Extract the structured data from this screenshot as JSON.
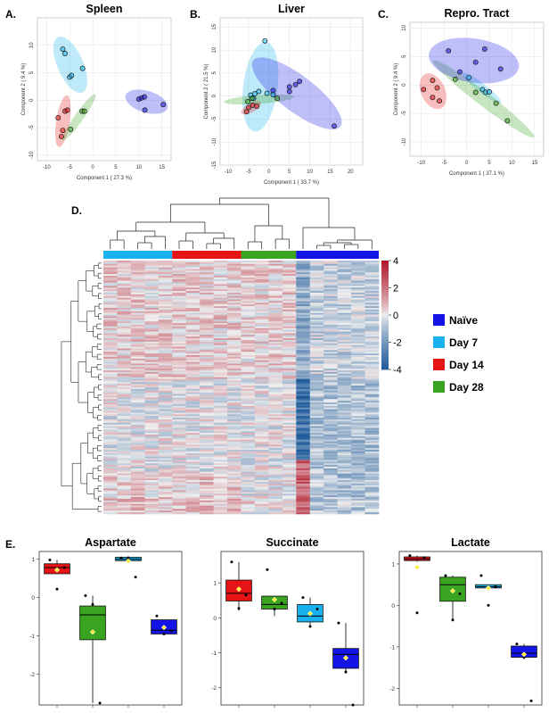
{
  "panel_letters": [
    "A.",
    "B.",
    "C.",
    "D.",
    "E."
  ],
  "colors": {
    "naive": "#1414e6",
    "day7": "#1ab2ee",
    "day14": "#e61414",
    "day28": "#3aa31f",
    "heat_low": "#1f5b9b",
    "heat_mid": "#efefef",
    "heat_high": "#b2182b"
  },
  "legend": [
    {
      "label": "Naïve",
      "color": "#1414e6"
    },
    {
      "label": "Day 7",
      "color": "#1ab2ee"
    },
    {
      "label": "Day 14",
      "color": "#e61414"
    },
    {
      "label": "Day 28",
      "color": "#3aa31f"
    }
  ],
  "chart_data": [
    {
      "type": "scatter",
      "title": "Spleen",
      "xlabel": "Component 1 ( 27.3 %)",
      "ylabel": "Component 2 ( 9.4 %)",
      "xlim": [
        -12,
        17
      ],
      "ylim": [
        -11,
        15
      ],
      "xticks": [
        -10,
        -5,
        0,
        5,
        10,
        15
      ],
      "yticks": [
        -10,
        -5,
        0,
        5,
        10
      ],
      "series": [
        {
          "name": "Day 7",
          "points": [
            [
              -6.5,
              9.3
            ],
            [
              -6.0,
              8.5
            ],
            [
              -5.0,
              4.2
            ],
            [
              -4.6,
              4.5
            ],
            [
              -2.2,
              5.8
            ]
          ]
        },
        {
          "name": "Day 14",
          "points": [
            [
              -7.5,
              -3.2
            ],
            [
              -6.5,
              -5.5
            ],
            [
              -6.0,
              -2.0
            ],
            [
              -5.5,
              -1.8
            ],
            [
              -6.8,
              -6.6
            ]
          ]
        },
        {
          "name": "Day 28",
          "points": [
            [
              -4.8,
              -5.3
            ],
            [
              -2.3,
              -2.0
            ],
            [
              -1.8,
              -2.0
            ]
          ]
        },
        {
          "name": "Naïve",
          "points": [
            [
              10.0,
              0.2
            ],
            [
              10.6,
              0.4
            ],
            [
              11.2,
              0.6
            ],
            [
              11.3,
              -1.8
            ],
            [
              15.3,
              -0.8
            ]
          ]
        }
      ]
    },
    {
      "type": "scatter",
      "title": "Liver",
      "xlabel": "Component 1 ( 33.7 %)",
      "ylabel": "Component 2 ( 21.5 %)",
      "xlim": [
        -12,
        23
      ],
      "ylim": [
        -15,
        17
      ],
      "xticks": [
        -10,
        -5,
        0,
        5,
        10,
        15,
        20
      ],
      "yticks": [
        -15,
        -10,
        -5,
        0,
        5,
        10,
        15
      ],
      "series": [
        {
          "name": "Day 7",
          "points": [
            [
              -1.0,
              12.0
            ],
            [
              -4.5,
              0.2
            ],
            [
              -3.5,
              0.5
            ],
            [
              -2.5,
              1.0
            ],
            [
              -0.5,
              0.6
            ],
            [
              1.0,
              0.3
            ],
            [
              -3.8,
              -0.5
            ]
          ]
        },
        {
          "name": "Day 14",
          "points": [
            [
              -5.5,
              -3.4
            ],
            [
              -5.0,
              -2.5
            ],
            [
              -4.0,
              -2.0
            ],
            [
              -3.0,
              -2.2
            ]
          ]
        },
        {
          "name": "Day 28",
          "points": [
            [
              -5.2,
              -1.2
            ],
            [
              -4.2,
              -0.5
            ],
            [
              2.0,
              -0.5
            ]
          ]
        },
        {
          "name": "Naïve",
          "points": [
            [
              1.0,
              1.2
            ],
            [
              5.0,
              1.0
            ],
            [
              5.0,
              2.0
            ],
            [
              6.5,
              2.5
            ],
            [
              7.5,
              3.2
            ],
            [
              16.0,
              -6.5
            ]
          ]
        }
      ]
    },
    {
      "type": "scatter",
      "title": "Repro. Tract",
      "xlabel": "Component 1 ( 37.1 %)",
      "ylabel": "Component 2 ( 9.4 %)",
      "xlim": [
        -12.5,
        17
      ],
      "ylim": [
        -12.5,
        11
      ],
      "xticks": [
        -10,
        -5,
        0,
        5,
        10,
        15
      ],
      "yticks": [
        -10,
        -5,
        0,
        5,
        10
      ],
      "series": [
        {
          "name": "Day 14",
          "points": [
            [
              -7.5,
              0.8
            ],
            [
              -9.5,
              -0.8
            ],
            [
              -6.5,
              -0.5
            ],
            [
              -7.5,
              -2.2
            ],
            [
              -6.0,
              -2.8
            ]
          ]
        },
        {
          "name": "Day 7",
          "points": [
            [
              0.5,
              1.3
            ],
            [
              3.5,
              -0.8
            ],
            [
              4.2,
              -1.3
            ],
            [
              5.0,
              -1.2
            ]
          ]
        },
        {
          "name": "Day 28",
          "points": [
            [
              -2.5,
              1.0
            ],
            [
              2.0,
              -1.3
            ],
            [
              6.5,
              -3.2
            ],
            [
              9.0,
              -6.3
            ]
          ]
        },
        {
          "name": "Naïve",
          "points": [
            [
              -4.0,
              6.0
            ],
            [
              -1.5,
              2.3
            ],
            [
              2.0,
              4.0
            ],
            [
              4.0,
              6.3
            ],
            [
              7.5,
              2.8
            ]
          ]
        }
      ]
    },
    {
      "type": "heatmap",
      "color_scale_ticks": [
        4,
        2,
        0,
        -2,
        -4
      ],
      "column_groups": [
        {
          "name": "Day 7",
          "count": 5
        },
        {
          "name": "Day 14",
          "count": 5
        },
        {
          "name": "Day 28",
          "count": 4
        },
        {
          "name": "Naïve",
          "count": 6
        }
      ]
    },
    {
      "type": "box",
      "title": "Aspartate",
      "ylim": [
        -2.8,
        1.2
      ],
      "yticks": [
        1,
        0,
        -1,
        -2
      ],
      "groups": [
        {
          "name": "Day 14",
          "q1": 0.62,
          "median": 0.78,
          "q3": 0.88,
          "whisker_low": 0.62,
          "whisker_high": 0.98,
          "mean": 0.72,
          "points": [
            0.98,
            0.22,
            0.78
          ]
        },
        {
          "name": "Day 28",
          "q1": -1.1,
          "median": -0.45,
          "q3": -0.22,
          "whisker_low": -2.75,
          "whisker_high": 0.05,
          "mean": -0.9,
          "points": [
            0.05,
            -0.18,
            -2.75
          ]
        },
        {
          "name": "Day 7",
          "q1": 0.96,
          "median": 1.0,
          "q3": 1.05,
          "whisker_low": 0.96,
          "whisker_high": 1.08,
          "mean": 0.95,
          "points": [
            1.03,
            1.02,
            0.53
          ]
        },
        {
          "name": "Naïve",
          "q1": -0.95,
          "median": -0.85,
          "q3": -0.58,
          "whisker_low": -0.97,
          "whisker_high": -0.58,
          "mean": -0.78,
          "points": [
            -0.48,
            -0.95,
            -0.87
          ]
        }
      ]
    },
    {
      "type": "box",
      "title": "Succinate",
      "ylim": [
        -2.5,
        1.9
      ],
      "yticks": [
        1,
        0,
        -1,
        -2
      ],
      "groups": [
        {
          "name": "Day 14",
          "q1": 0.48,
          "median": 0.7,
          "q3": 1.08,
          "whisker_low": 0.2,
          "whisker_high": 1.6,
          "mean": 0.82,
          "points": [
            1.6,
            0.27,
            0.65
          ]
        },
        {
          "name": "Day 28",
          "q1": 0.25,
          "median": 0.38,
          "q3": 0.62,
          "whisker_low": 0.05,
          "whisker_high": 0.62,
          "mean": 0.52,
          "points": [
            1.38,
            0.25,
            0.42
          ]
        },
        {
          "name": "Day 7",
          "q1": -0.12,
          "median": 0.05,
          "q3": 0.38,
          "whisker_low": -0.28,
          "whisker_high": 0.58,
          "mean": 0.12,
          "points": [
            0.58,
            -0.25,
            0.25
          ]
        },
        {
          "name": "Naïve",
          "q1": -1.45,
          "median": -1.05,
          "q3": -0.88,
          "whisker_low": -1.6,
          "whisker_high": -0.15,
          "mean": -1.15,
          "points": [
            -0.15,
            -1.55,
            -2.5
          ]
        }
      ]
    },
    {
      "type": "box",
      "title": "Lactate",
      "ylim": [
        -2.4,
        1.3
      ],
      "yticks": [
        1,
        0,
        -1,
        -2
      ],
      "groups": [
        {
          "name": "Day 14",
          "q1": 1.08,
          "median": 1.12,
          "q3": 1.17,
          "whisker_low": 1.05,
          "whisker_high": 1.2,
          "mean": 0.92,
          "points": [
            1.2,
            -0.18,
            1.15
          ]
        },
        {
          "name": "Day 28",
          "q1": 0.1,
          "median": 0.5,
          "q3": 0.68,
          "whisker_low": -0.38,
          "whisker_high": 0.72,
          "mean": 0.35,
          "points": [
            0.72,
            -0.35,
            0.28
          ]
        },
        {
          "name": "Day 7",
          "q1": 0.42,
          "median": 0.45,
          "q3": 0.5,
          "whisker_low": 0.42,
          "whisker_high": 0.5,
          "mean": 0.42,
          "points": [
            0.72,
            0.0,
            0.45
          ]
        },
        {
          "name": "Naïve",
          "q1": -1.25,
          "median": -1.15,
          "q3": -0.98,
          "whisker_low": -1.3,
          "whisker_high": -0.93,
          "mean": -1.18,
          "points": [
            -0.93,
            -1.25,
            -2.3
          ]
        }
      ]
    }
  ]
}
